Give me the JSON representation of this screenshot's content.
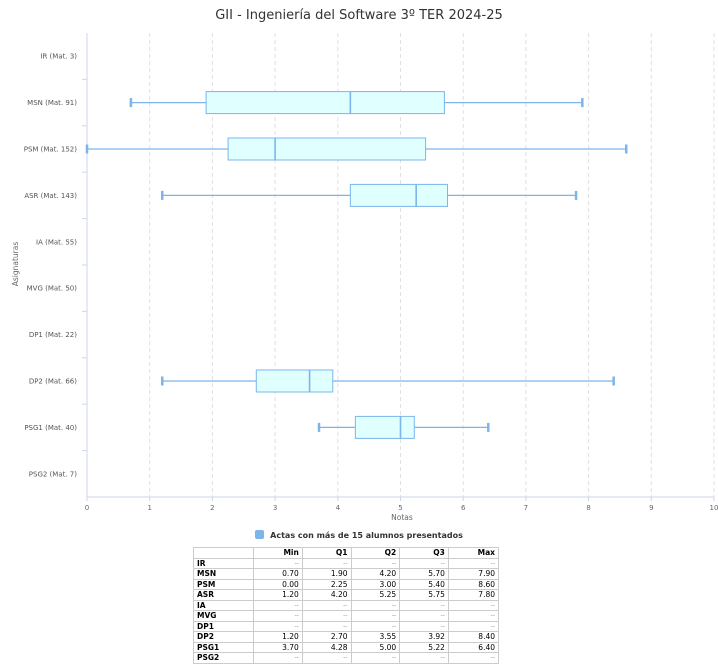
{
  "chart_data": {
    "type": "boxplot",
    "orientation": "horizontal",
    "title": "GII - Ingeniería del Software 3º TER 2024-25",
    "xlabel": "Notas",
    "ylabel": "Asignaturas",
    "xlim": [
      0,
      10
    ],
    "xticks": [
      "0",
      "1",
      "2",
      "3",
      "4",
      "5",
      "6",
      "7",
      "8",
      "9",
      "10"
    ],
    "grid": "vertical dashed",
    "legend": "bottom",
    "series": [
      {
        "name": "Actas con más de 15 alumnos presentados",
        "color": "#7cb5ec"
      }
    ],
    "categories": [
      {
        "key": "IR",
        "label": "IR (Mat. 3)",
        "min": null,
        "q1": null,
        "median": null,
        "q3": null,
        "max": null
      },
      {
        "key": "MSN",
        "label": "MSN (Mat. 91)",
        "min": 0.7,
        "q1": 1.9,
        "median": 4.2,
        "q3": 5.7,
        "max": 7.9
      },
      {
        "key": "PSM",
        "label": "PSM (Mat. 152)",
        "min": 0.0,
        "q1": 2.25,
        "median": 3.0,
        "q3": 5.4,
        "max": 8.6
      },
      {
        "key": "ASR",
        "label": "ASR (Mat. 143)",
        "min": 1.2,
        "q1": 4.2,
        "median": 5.25,
        "q3": 5.75,
        "max": 7.8
      },
      {
        "key": "IA",
        "label": "IA (Mat. 55)",
        "min": null,
        "q1": null,
        "median": null,
        "q3": null,
        "max": null
      },
      {
        "key": "MVG",
        "label": "MVG (Mat. 50)",
        "min": null,
        "q1": null,
        "median": null,
        "q3": null,
        "max": null
      },
      {
        "key": "DP1",
        "label": "DP1 (Mat. 22)",
        "min": null,
        "q1": null,
        "median": null,
        "q3": null,
        "max": null
      },
      {
        "key": "DP2",
        "label": "DP2 (Mat. 66)",
        "min": 1.2,
        "q1": 2.7,
        "median": 3.55,
        "q3": 3.92,
        "max": 8.4
      },
      {
        "key": "PSG1",
        "label": "PSG1 (Mat. 40)",
        "min": 3.7,
        "q1": 4.28,
        "median": 5.0,
        "q3": 5.22,
        "max": 6.4
      },
      {
        "key": "PSG2",
        "label": "PSG2 (Mat. 7)",
        "min": null,
        "q1": null,
        "median": null,
        "q3": null,
        "max": null
      }
    ]
  },
  "table": {
    "headers": [
      "",
      "Min",
      "Q1",
      "Q2",
      "Q3",
      "Max"
    ],
    "rows": [
      [
        "IR",
        "--",
        "--",
        "--",
        "--",
        "--"
      ],
      [
        "MSN",
        "0.70",
        "1.90",
        "4.20",
        "5.70",
        "7.90"
      ],
      [
        "PSM",
        "0.00",
        "2.25",
        "3.00",
        "5.40",
        "8.60"
      ],
      [
        "ASR",
        "1.20",
        "4.20",
        "5.25",
        "5.75",
        "7.80"
      ],
      [
        "IA",
        "--",
        "--",
        "--",
        "--",
        "--"
      ],
      [
        "MVG",
        "--",
        "--",
        "--",
        "--",
        "--"
      ],
      [
        "DP1",
        "--",
        "--",
        "--",
        "--",
        "--"
      ],
      [
        "DP2",
        "1.20",
        "2.70",
        "3.55",
        "3.92",
        "8.40"
      ],
      [
        "PSG1",
        "3.70",
        "4.28",
        "5.00",
        "5.22",
        "6.40"
      ],
      [
        "PSG2",
        "--",
        "--",
        "--",
        "--",
        "--"
      ]
    ]
  }
}
